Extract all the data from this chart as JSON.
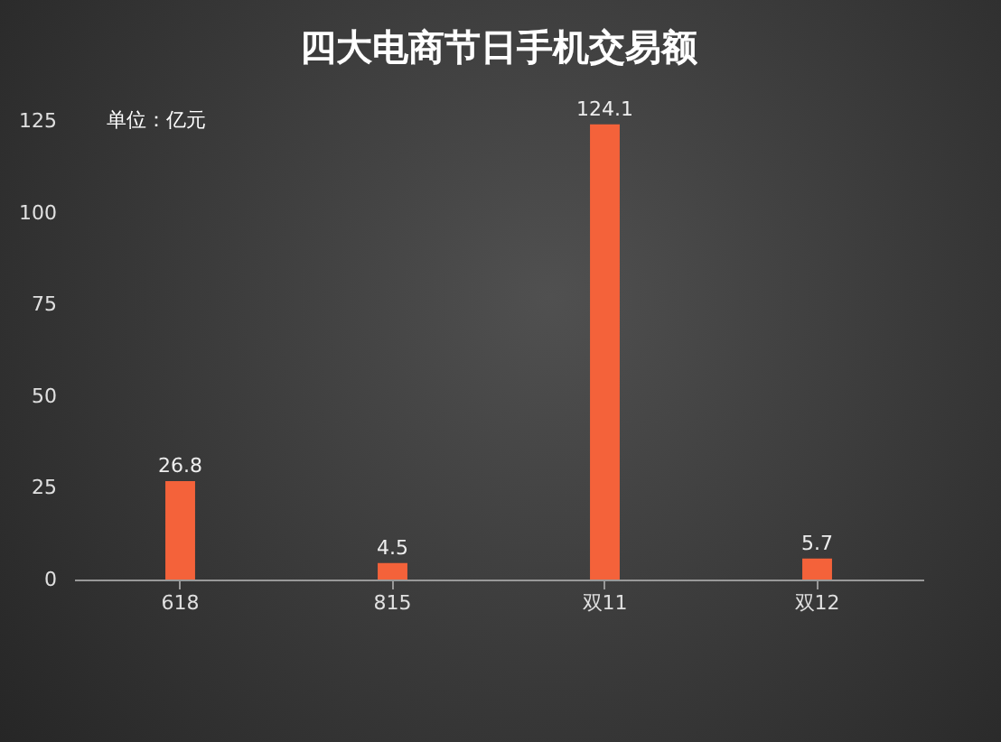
{
  "chart_data": {
    "type": "bar",
    "title": "四大电商节日手机交易额",
    "annotations": [
      "单位：亿元"
    ],
    "categories": [
      "618",
      "815",
      "双11",
      "双12"
    ],
    "values": [
      26.8,
      4.5,
      124.1,
      5.7
    ],
    "color": "#f4623a",
    "ylim": [
      0,
      125
    ],
    "yticks": [
      0,
      25,
      50,
      75,
      100,
      125
    ],
    "data_labels": true,
    "grid": false
  }
}
